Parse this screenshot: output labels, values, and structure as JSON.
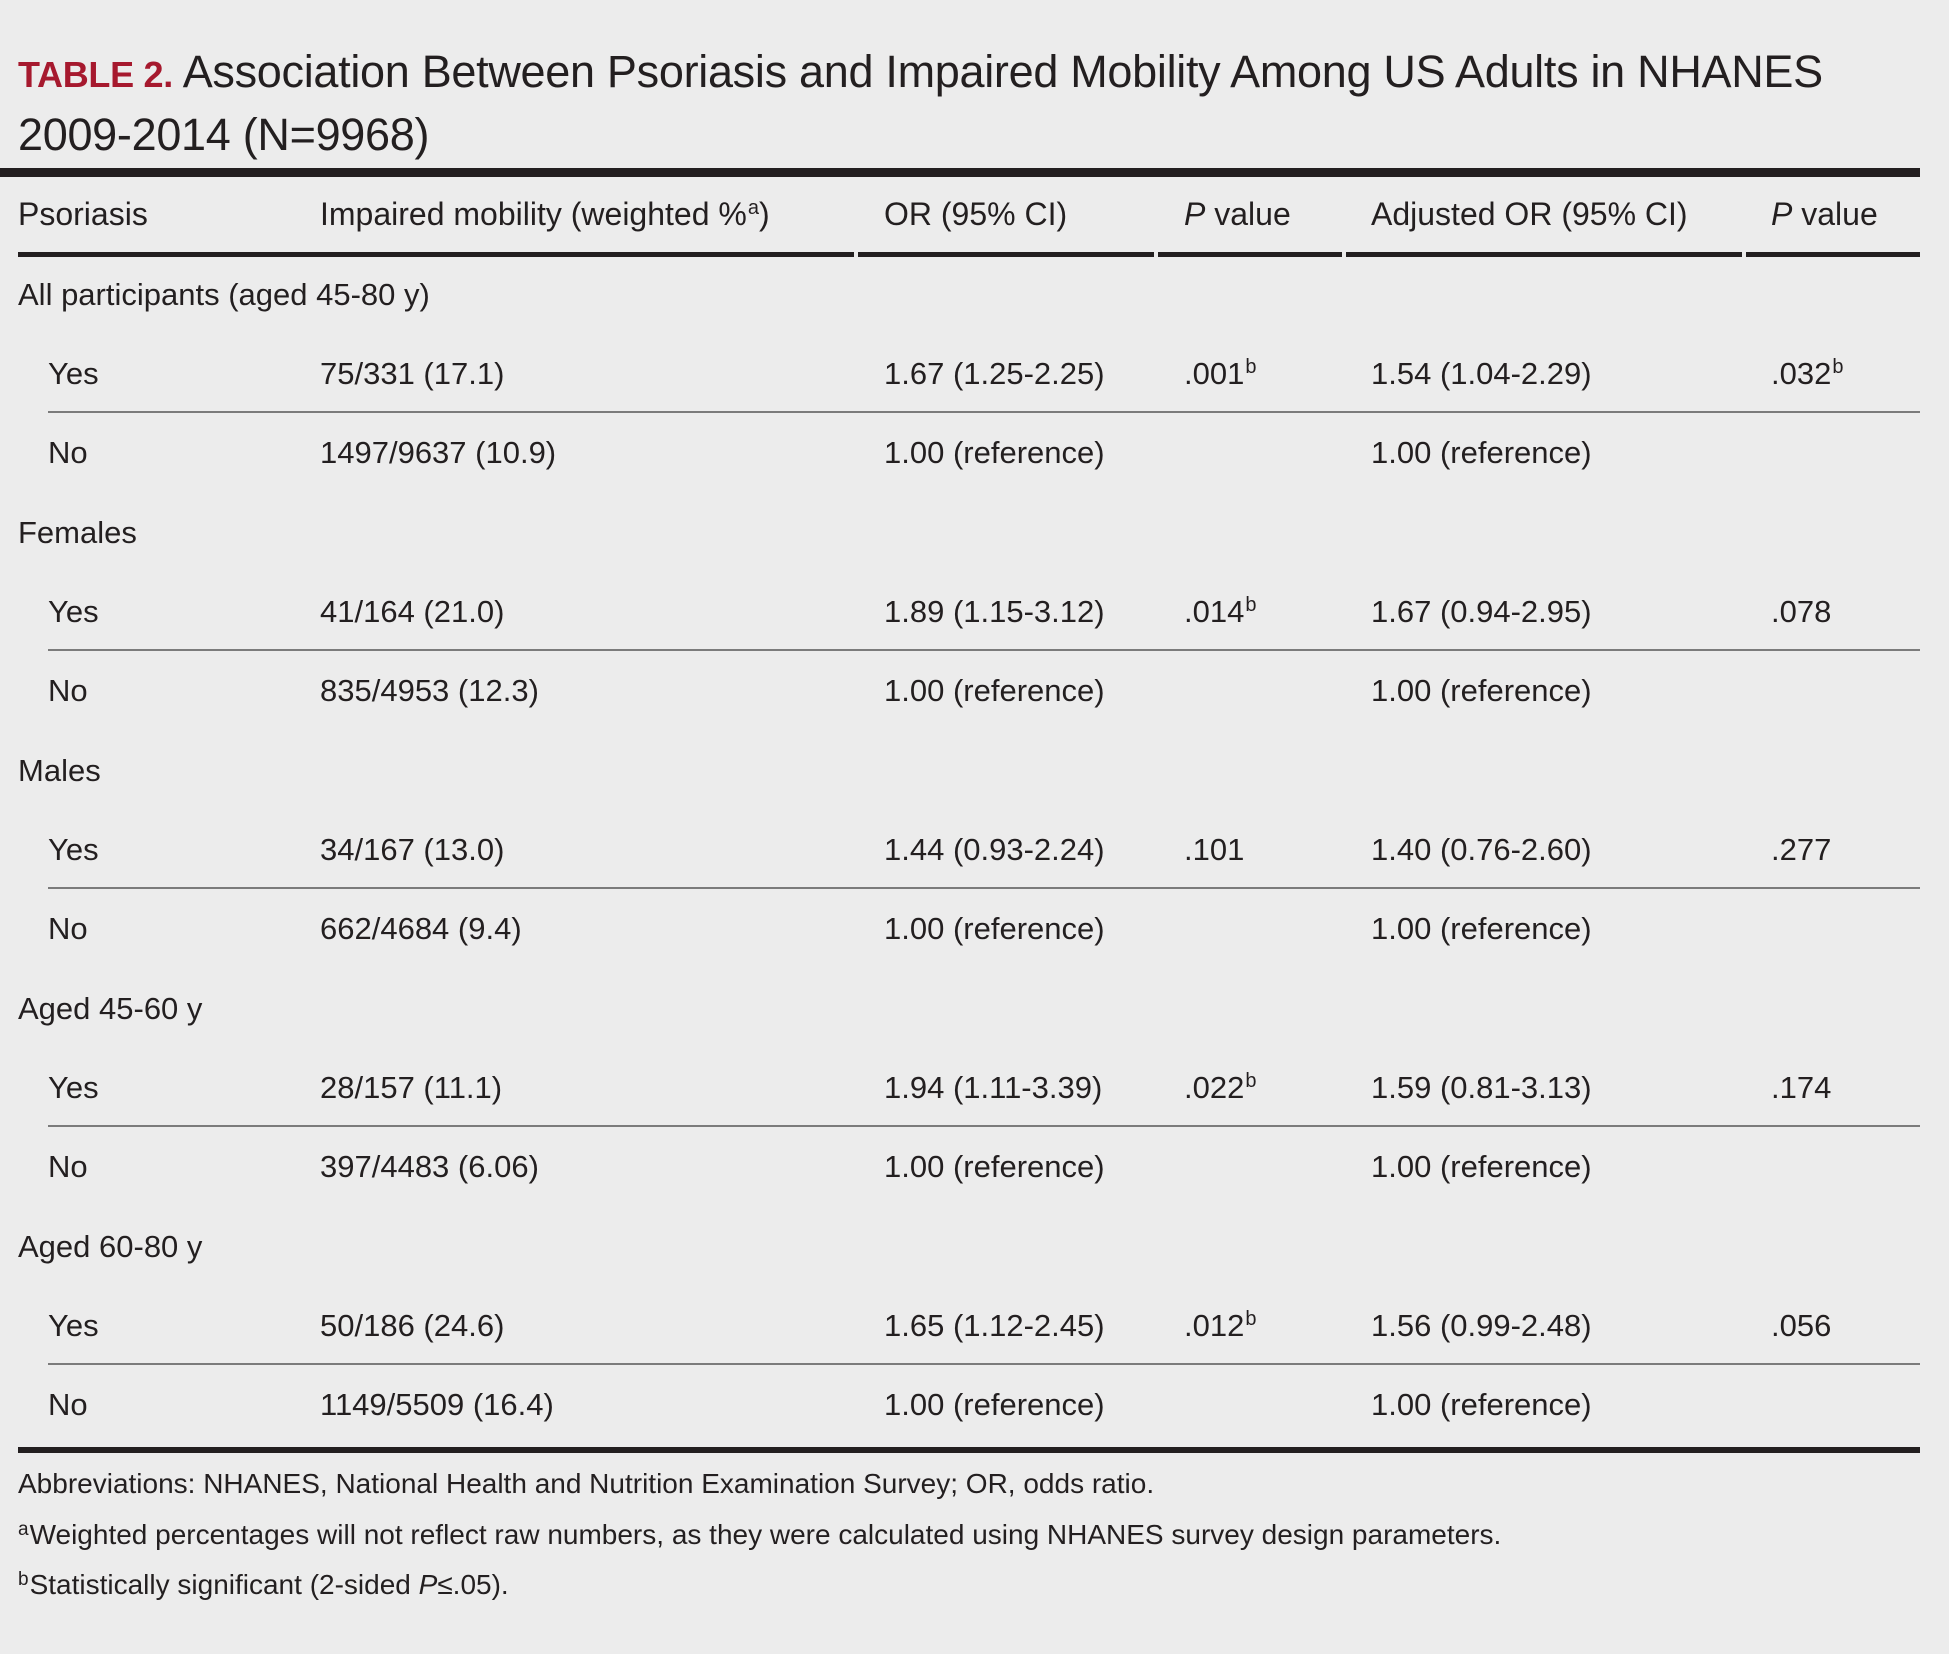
{
  "title": {
    "label": "TABLE 2",
    "text": "Association Between Psoriasis and Impaired Mobility Among US Adults in NHANES 2009-2014 (N=9968)"
  },
  "headers": {
    "psoriasis": "Psoriasis",
    "impaired": "Impaired mobility (weighted %",
    "impaired_sup": "a",
    "impaired_close": ")",
    "or": "OR (95% CI)",
    "p_italic": "P",
    "p_value": " value",
    "adjusted_or": "Adjusted OR (95% CI)",
    "p2_italic": "P",
    "p2_value": " value"
  },
  "groups": [
    {
      "label": "All participants (aged 45-80 y)",
      "rows": [
        {
          "psoriasis": "Yes",
          "impaired": "75/331 (17.1)",
          "or": "1.67 (1.25-2.25)",
          "p": ".001",
          "p_sup": "b",
          "adj_or": "1.54 (1.04-2.29)",
          "adj_p": ".032",
          "adj_p_sup": "b"
        },
        {
          "psoriasis": "No",
          "impaired": "1497/9637 (10.9)",
          "or": "1.00 (reference)",
          "p": "",
          "p_sup": "",
          "adj_or": "1.00 (reference)",
          "adj_p": "",
          "adj_p_sup": ""
        }
      ]
    },
    {
      "label": "Females",
      "rows": [
        {
          "psoriasis": "Yes",
          "impaired": "41/164 (21.0)",
          "or": "1.89 (1.15-3.12)",
          "p": ".014",
          "p_sup": "b",
          "adj_or": "1.67 (0.94-2.95)",
          "adj_p": ".078",
          "adj_p_sup": ""
        },
        {
          "psoriasis": "No",
          "impaired": "835/4953 (12.3)",
          "or": "1.00 (reference)",
          "p": "",
          "p_sup": "",
          "adj_or": "1.00 (reference)",
          "adj_p": "",
          "adj_p_sup": ""
        }
      ]
    },
    {
      "label": "Males",
      "rows": [
        {
          "psoriasis": "Yes",
          "impaired": "34/167 (13.0)",
          "or": "1.44 (0.93-2.24)",
          "p": ".101",
          "p_sup": "",
          "adj_or": "1.40 (0.76-2.60)",
          "adj_p": ".277",
          "adj_p_sup": ""
        },
        {
          "psoriasis": "No",
          "impaired": "662/4684 (9.4)",
          "or": "1.00 (reference)",
          "p": "",
          "p_sup": "",
          "adj_or": "1.00 (reference)",
          "adj_p": "",
          "adj_p_sup": ""
        }
      ]
    },
    {
      "label": "Aged 45-60 y",
      "rows": [
        {
          "psoriasis": "Yes",
          "impaired": "28/157 (11.1)",
          "or": "1.94 (1.11-3.39)",
          "p": ".022",
          "p_sup": "b",
          "adj_or": "1.59 (0.81-3.13)",
          "adj_p": ".174",
          "adj_p_sup": ""
        },
        {
          "psoriasis": "No",
          "impaired": "397/4483 (6.06)",
          "or": "1.00 (reference)",
          "p": "",
          "p_sup": "",
          "adj_or": "1.00 (reference)",
          "adj_p": "",
          "adj_p_sup": ""
        }
      ]
    },
    {
      "label": "Aged 60-80 y",
      "rows": [
        {
          "psoriasis": "Yes",
          "impaired": "50/186 (24.6)",
          "or": "1.65 (1.12-2.45)",
          "p": ".012",
          "p_sup": "b",
          "adj_or": "1.56 (0.99-2.48)",
          "adj_p": ".056",
          "adj_p_sup": ""
        },
        {
          "psoriasis": "No",
          "impaired": "1149/5509 (16.4)",
          "or": "1.00 (reference)",
          "p": "",
          "p_sup": "",
          "adj_or": "1.00 (reference)",
          "adj_p": "",
          "adj_p_sup": ""
        }
      ]
    }
  ],
  "footnotes": {
    "abbreviations": "Abbreviations: NHANES, National Health and Nutrition Examination Survey; OR, odds ratio.",
    "a_sup": "a",
    "a_text": "Weighted percentages will not reflect raw numbers, as they were calculated using NHANES survey design parameters.",
    "b_sup": "b",
    "b_text_pre": "Statistically significant (2-sided ",
    "b_text_italic": "P",
    "b_text_post": "≤.05)."
  }
}
